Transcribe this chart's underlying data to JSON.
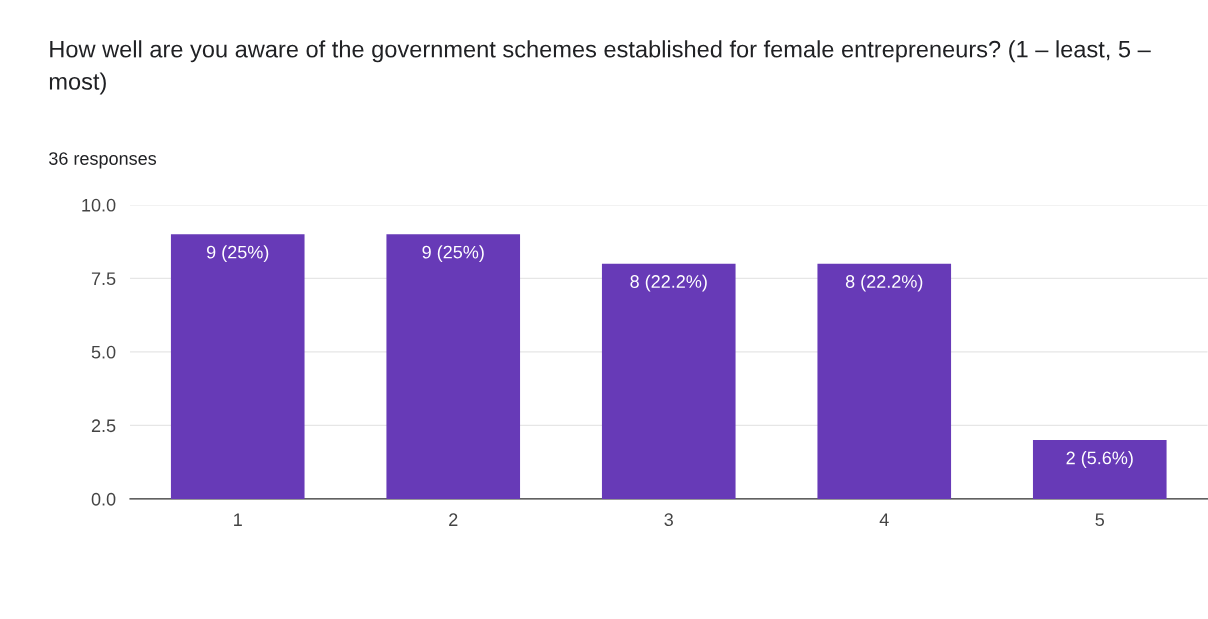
{
  "chart_data": {
    "type": "bar",
    "title": "How well are you aware of the government schemes established for female entrepreneurs? (1 – least, 5 – most)",
    "subtitle": "36 responses",
    "categories": [
      "1",
      "2",
      "3",
      "4",
      "5"
    ],
    "values": [
      9,
      9,
      8,
      8,
      2
    ],
    "value_labels": [
      "9 (25%)",
      "9 (25%)",
      "8 (22.2%)",
      "8 (22.2%)",
      "2 (5.6%)"
    ],
    "color": "#673ab7",
    "ylim": [
      0,
      10
    ],
    "yticks": [
      {
        "value": 0,
        "label": "0.0"
      },
      {
        "value": 2.5,
        "label": "2.5"
      },
      {
        "value": 5,
        "label": "5.0"
      },
      {
        "value": 7.5,
        "label": "7.5"
      },
      {
        "value": 10,
        "label": "10.0"
      }
    ],
    "grid": "y",
    "legend": false
  }
}
